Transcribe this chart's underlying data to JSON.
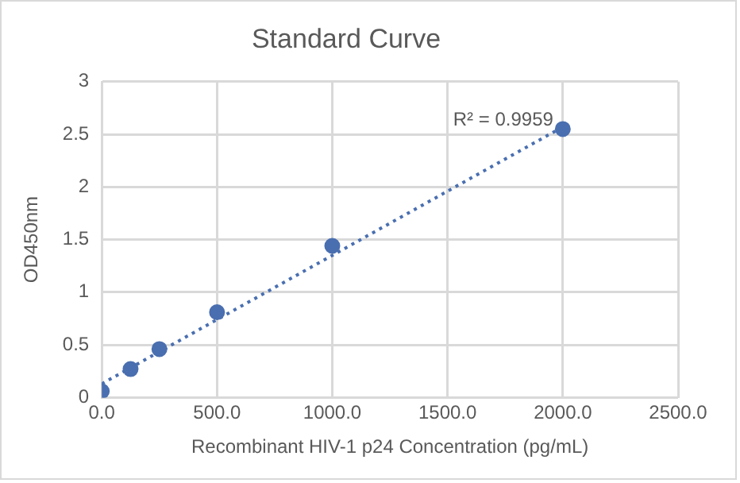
{
  "chart_data": {
    "type": "scatter",
    "title": "Standard Curve",
    "xlabel": "Recombinant HIV-1 p24 Concentration (pg/mL)",
    "ylabel": "OD450nm",
    "x": [
      0,
      125,
      250,
      500,
      1000,
      2000
    ],
    "series": [
      {
        "type": "scatter",
        "color": "#4a6fb0",
        "values": [
          0.06,
          0.27,
          0.46,
          0.81,
          1.44,
          2.55
        ],
        "marker": "circle"
      },
      {
        "type": "line",
        "color": "#4a6fb0",
        "x": [
          0,
          2000
        ],
        "values": [
          0.13,
          2.57
        ],
        "line_style": "dotted",
        "marker": "none"
      }
    ],
    "annotations": [
      {
        "text": "R² = 0.9959",
        "x": 2000,
        "y": 2.57
      }
    ],
    "xlim": [
      0,
      2500
    ],
    "xticks": [
      {
        "value": 0,
        "label": "0.0"
      },
      {
        "value": 500,
        "label": "500.0"
      },
      {
        "value": 1000,
        "label": "1000.0"
      },
      {
        "value": 1500,
        "label": "1500.0"
      },
      {
        "value": 2000,
        "label": "2000.0"
      },
      {
        "value": 2500,
        "label": "2500.0"
      }
    ],
    "ylim": [
      0,
      3
    ],
    "yticks": [
      0,
      0.5,
      1,
      1.5,
      2,
      2.5,
      3
    ],
    "grid": true,
    "legend": false
  }
}
